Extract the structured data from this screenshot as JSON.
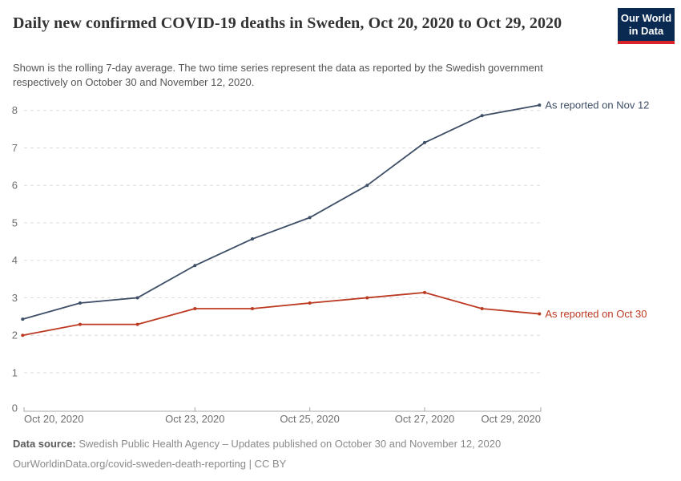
{
  "header": {
    "title": "Daily new confirmed COVID-19 deaths in Sweden, Oct 20, 2020 to Oct 29, 2020",
    "subtitle": "Shown is the rolling 7-day average. The two time series represent the data as reported by the Swedish government respectively on October 30 and November 12, 2020.",
    "logo": {
      "line1": "Our World",
      "line2": "in Data",
      "bg_color": "#0a2a52",
      "bar_color": "#d8232a"
    }
  },
  "chart_data": {
    "type": "line",
    "title": "Daily new confirmed COVID-19 deaths in Sweden, Oct 20, 2020 to Oct 29, 2020",
    "x": [
      "Oct 20, 2020",
      "Oct 21, 2020",
      "Oct 22, 2020",
      "Oct 23, 2020",
      "Oct 24, 2020",
      "Oct 25, 2020",
      "Oct 26, 2020",
      "Oct 27, 2020",
      "Oct 28, 2020",
      "Oct 29, 2020"
    ],
    "series": [
      {
        "name": "As reported on Nov 12",
        "color": "#3d4e66",
        "values": [
          2.43,
          2.86,
          3,
          3.86,
          4.57,
          5.14,
          6,
          7.14,
          7.86,
          8.14
        ]
      },
      {
        "name": "As reported on Oct 30",
        "color": "#bc3a22",
        "values": [
          2,
          2.29,
          2.29,
          2.71,
          2.71,
          2.86,
          3,
          3.14,
          2.71,
          2.57
        ]
      }
    ],
    "ylim": [
      0,
      8.5
    ],
    "y_ticks": [
      0,
      1,
      2,
      3,
      4,
      5,
      6,
      7,
      8
    ],
    "x_tick_labels": [
      {
        "index": 0,
        "label": "Oct 20, 2020",
        "anchor": "start"
      },
      {
        "index": 3,
        "label": "Oct 23, 2020",
        "anchor": "middle"
      },
      {
        "index": 5,
        "label": "Oct 25, 2020",
        "anchor": "middle"
      },
      {
        "index": 7,
        "label": "Oct 27, 2020",
        "anchor": "middle"
      },
      {
        "index": 9,
        "label": "Oct 29, 2020",
        "anchor": "end"
      }
    ],
    "grid": "horizontal-dashed",
    "legend_position": "line-end-labels"
  },
  "footer": {
    "source_label": "Data source:",
    "source_text": "Swedish Public Health Agency – Updates published on October 30 and November 12, 2020",
    "link_text": "OurWorldinData.org/covid-sweden-death-reporting | CC BY"
  }
}
